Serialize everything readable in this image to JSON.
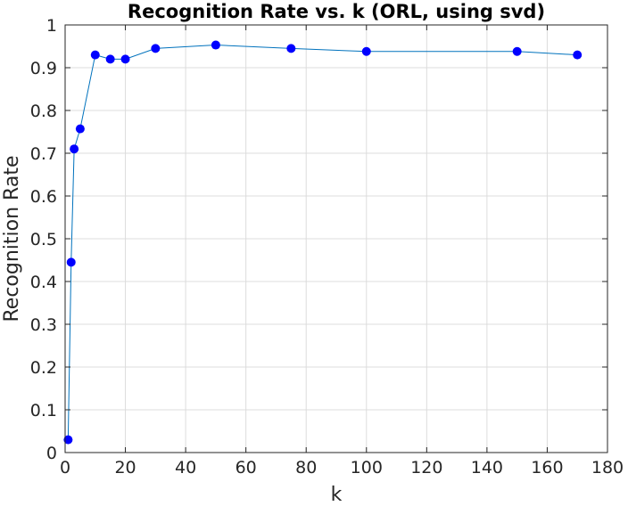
{
  "chart_data": {
    "type": "line",
    "title": "Recognition Rate vs. k (ORL, using svd)",
    "xlabel": "k",
    "ylabel": "Recognition Rate",
    "xlim": [
      0,
      180
    ],
    "ylim": [
      0,
      1
    ],
    "xticks": [
      0,
      20,
      40,
      60,
      80,
      100,
      120,
      140,
      160,
      180
    ],
    "yticks": [
      0,
      0.1,
      0.2,
      0.3,
      0.4,
      0.5,
      0.6,
      0.7,
      0.8,
      0.9,
      1
    ],
    "xtick_labels": [
      "0",
      "20",
      "40",
      "60",
      "80",
      "100",
      "120",
      "140",
      "160",
      "180"
    ],
    "ytick_labels": [
      "0",
      "0.1",
      "0.2",
      "0.3",
      "0.4",
      "0.5",
      "0.6",
      "0.7",
      "0.8",
      "0.9",
      "1"
    ],
    "grid": true,
    "series": [
      {
        "line_color": "#0072bd",
        "marker_color": "#0000ff",
        "x": [
          1,
          2,
          3,
          5,
          10,
          15,
          20,
          30,
          50,
          75,
          100,
          150,
          170
        ],
        "y": [
          0.03,
          0.445,
          0.71,
          0.757,
          0.93,
          0.92,
          0.92,
          0.945,
          0.953,
          0.945,
          0.938,
          0.938,
          0.93
        ]
      }
    ]
  }
}
